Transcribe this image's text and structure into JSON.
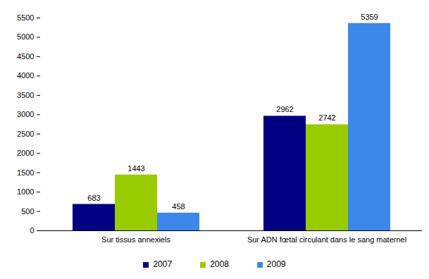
{
  "chart_data": {
    "type": "bar",
    "categories": [
      "Sur tissus annexiels",
      "Sur ADN fœtal circulant dans le sang maternel"
    ],
    "series": [
      {
        "name": "2007",
        "color": "#000080",
        "values": [
          683,
          2962
        ]
      },
      {
        "name": "2008",
        "color": "#99cc00",
        "values": [
          1443,
          2742
        ]
      },
      {
        "name": "2009",
        "color": "#3d87eb",
        "values": [
          458,
          5359
        ]
      }
    ],
    "ylim": [
      0,
      5500
    ],
    "yticks": [
      0,
      500,
      1000,
      1500,
      2000,
      2500,
      3000,
      3500,
      4000,
      4500,
      5000,
      5500
    ],
    "grid": false,
    "legend": "bottom",
    "data_labels": true
  }
}
